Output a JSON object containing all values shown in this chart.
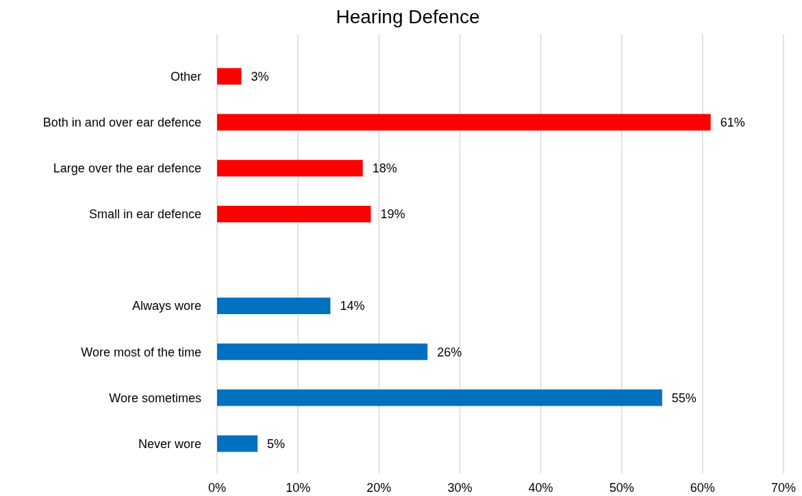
{
  "chart_data": {
    "type": "bar",
    "orientation": "horizontal",
    "title": "Hearing Defence",
    "categories": [
      "Other",
      "Both in and over ear defence",
      "Large over the ear defence",
      "Small in ear defence",
      null,
      "Always wore",
      "Wore most of the time",
      "Wore sometimes",
      "Never wore"
    ],
    "values": [
      3,
      61,
      18,
      19,
      null,
      14,
      26,
      55,
      5
    ],
    "colors": [
      "#ff0000",
      "#ff0000",
      "#ff0000",
      "#ff0000",
      null,
      "#0070c0",
      "#0070c0",
      "#0070c0",
      "#0070c0"
    ],
    "value_labels": [
      "3%",
      "61%",
      "18%",
      "19%",
      null,
      "14%",
      "26%",
      "55%",
      "5%"
    ],
    "xlim": [
      0,
      70
    ],
    "xticks": [
      {
        "value": 0,
        "label": "0%"
      },
      {
        "value": 10,
        "label": "10%"
      },
      {
        "value": 20,
        "label": "20%"
      },
      {
        "value": 30,
        "label": "30%"
      },
      {
        "value": 40,
        "label": "40%"
      },
      {
        "value": 50,
        "label": "50%"
      },
      {
        "value": 60,
        "label": "60%"
      },
      {
        "value": 70,
        "label": "70%"
      }
    ],
    "grid": "x"
  }
}
